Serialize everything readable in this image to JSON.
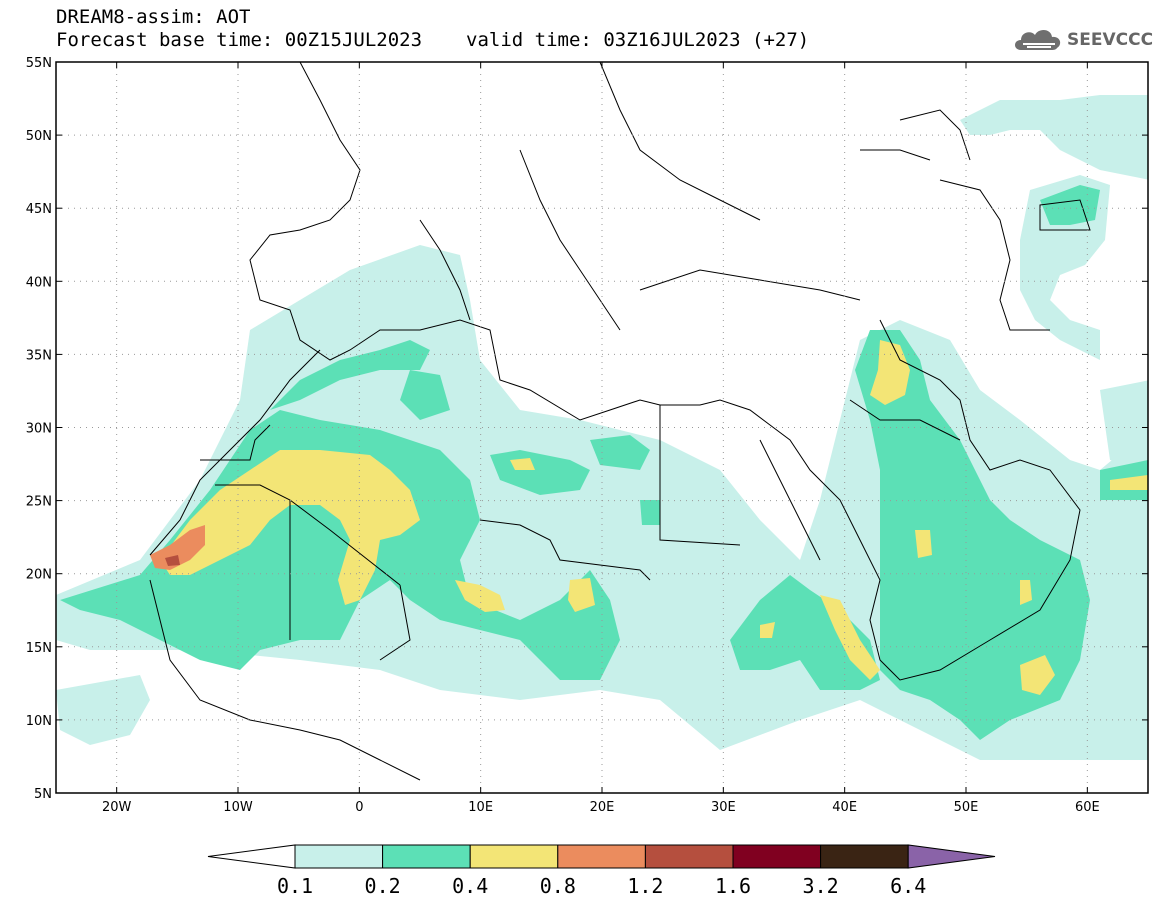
{
  "header": {
    "title": "DREAM8-assim: AOT",
    "base_time": "Forecast base time: 00Z15JUL2023",
    "valid_time": "valid time: 03Z16JUL2023 (+27)"
  },
  "logo": {
    "text": "SEEVCCC",
    "icon": "cloud-icon"
  },
  "map": {
    "lon_range": [
      -25,
      65
    ],
    "lat_range": [
      5,
      55
    ],
    "lat_ticks": [
      {
        "value": 55,
        "label": "55N"
      },
      {
        "value": 50,
        "label": "50N"
      },
      {
        "value": 45,
        "label": "45N"
      },
      {
        "value": 40,
        "label": "40N"
      },
      {
        "value": 35,
        "label": "35N"
      },
      {
        "value": 30,
        "label": "30N"
      },
      {
        "value": 25,
        "label": "25N"
      },
      {
        "value": 20,
        "label": "20N"
      },
      {
        "value": 15,
        "label": "15N"
      },
      {
        "value": 10,
        "label": "10N"
      },
      {
        "value": 5,
        "label": "5N"
      }
    ],
    "lon_ticks": [
      {
        "value": -20,
        "label": "20W"
      },
      {
        "value": -10,
        "label": "10W"
      },
      {
        "value": 0,
        "label": "0"
      },
      {
        "value": 10,
        "label": "10E"
      },
      {
        "value": 20,
        "label": "20E"
      },
      {
        "value": 30,
        "label": "30E"
      },
      {
        "value": 40,
        "label": "40E"
      },
      {
        "value": 50,
        "label": "50E"
      },
      {
        "value": 60,
        "label": "60E"
      }
    ],
    "grid": true
  },
  "legend": {
    "levels": [
      "0.1",
      "0.2",
      "0.4",
      "0.8",
      "1.2",
      "1.6",
      "3.2",
      "6.4"
    ],
    "colors": [
      "#ffffff",
      "#c8f0ea",
      "#5ce0b6",
      "#f3e576",
      "#eb8c5e",
      "#b54f3e",
      "#800020",
      "#3a2414",
      "#8a63a8"
    ]
  }
}
